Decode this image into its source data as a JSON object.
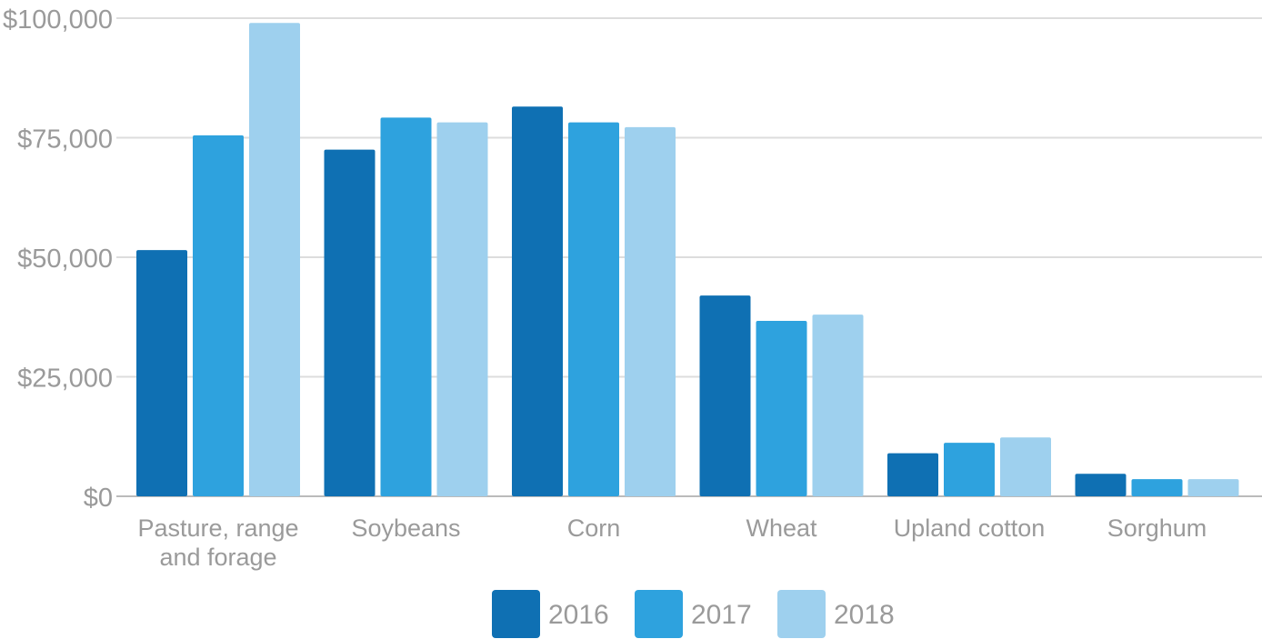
{
  "chart_data": {
    "type": "bar",
    "categories": [
      [
        "Pasture, range",
        "and forage"
      ],
      [
        "Soybeans"
      ],
      [
        "Corn"
      ],
      [
        "Wheat"
      ],
      [
        "Upland cotton"
      ],
      [
        "Sorghum"
      ]
    ],
    "series": [
      {
        "name": "2016",
        "color": "#0f70b3",
        "values": [
          51500,
          72500,
          81500,
          42000,
          9000,
          4700
        ]
      },
      {
        "name": "2017",
        "color": "#2ea2de",
        "values": [
          75500,
          79200,
          78200,
          36700,
          11200,
          3600
        ]
      },
      {
        "name": "2018",
        "color": "#9ed0ee",
        "values": [
          99000,
          78200,
          77200,
          38000,
          12300,
          3600
        ]
      }
    ],
    "y_ticks": [
      "$0",
      "$25,000",
      "$50,000",
      "$75,000",
      "$100,000"
    ],
    "ylim": [
      0,
      100000
    ],
    "grid": true,
    "legend_position": "bottom-center"
  }
}
